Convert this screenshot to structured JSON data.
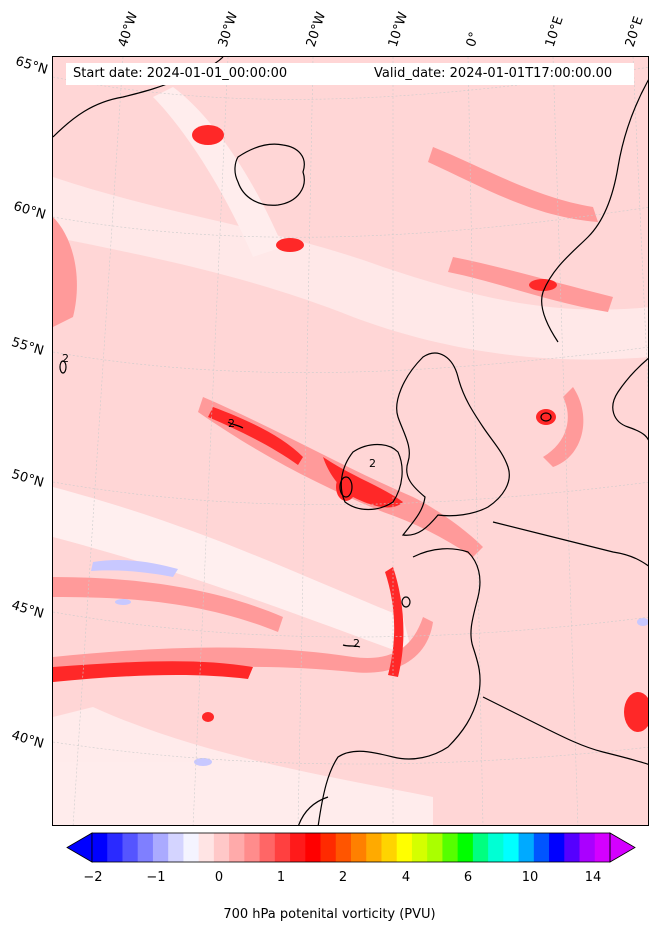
{
  "header": {
    "start_date": "Start date: 2024-01-01_00:00:00",
    "valid_date": "Valid_date: 2024-01-01T17:00:00.00"
  },
  "latitude_labels": [
    "65°N",
    "60°N",
    "55°N",
    "50°N",
    "45°N",
    "40°N"
  ],
  "longitude_labels": [
    "40°W",
    "30°W",
    "20°W",
    "10°W",
    "0°",
    "10°E",
    "20°E"
  ],
  "contour_labels": [
    "2",
    "2",
    "2",
    "2"
  ],
  "colorbar": {
    "title": "700 hPa potenital vorticity (PVU)",
    "ticks": [
      "−2",
      "−1",
      "0",
      "1",
      "2",
      "4",
      "6",
      "10",
      "14"
    ],
    "colors": [
      "#0000ff",
      "#2a2aff",
      "#5555ff",
      "#7f7fff",
      "#aaaaff",
      "#d4d4ff",
      "#f4f4ff",
      "#ffe4e4",
      "#ffc8c8",
      "#ffaaaa",
      "#ff8c8c",
      "#ff6666",
      "#ff4040",
      "#ff1a1a",
      "#ff0000",
      "#ff2a00",
      "#ff5500",
      "#ff8000",
      "#ffaa00",
      "#ffd400",
      "#ffff00",
      "#d4ff00",
      "#aaff00",
      "#55ff00",
      "#00ff00",
      "#00ff80",
      "#00ffd4",
      "#00ffff",
      "#00aaff",
      "#0055ff",
      "#0000ff",
      "#5500ff",
      "#aa00ff",
      "#d400ff"
    ]
  },
  "colors": {
    "background_pv": "#ffd6d6",
    "strong_pv": "#ff2020",
    "moderate_pv": "#ff8a8a",
    "negative_pv": "#c8c8ff",
    "coastline": "#000000"
  }
}
